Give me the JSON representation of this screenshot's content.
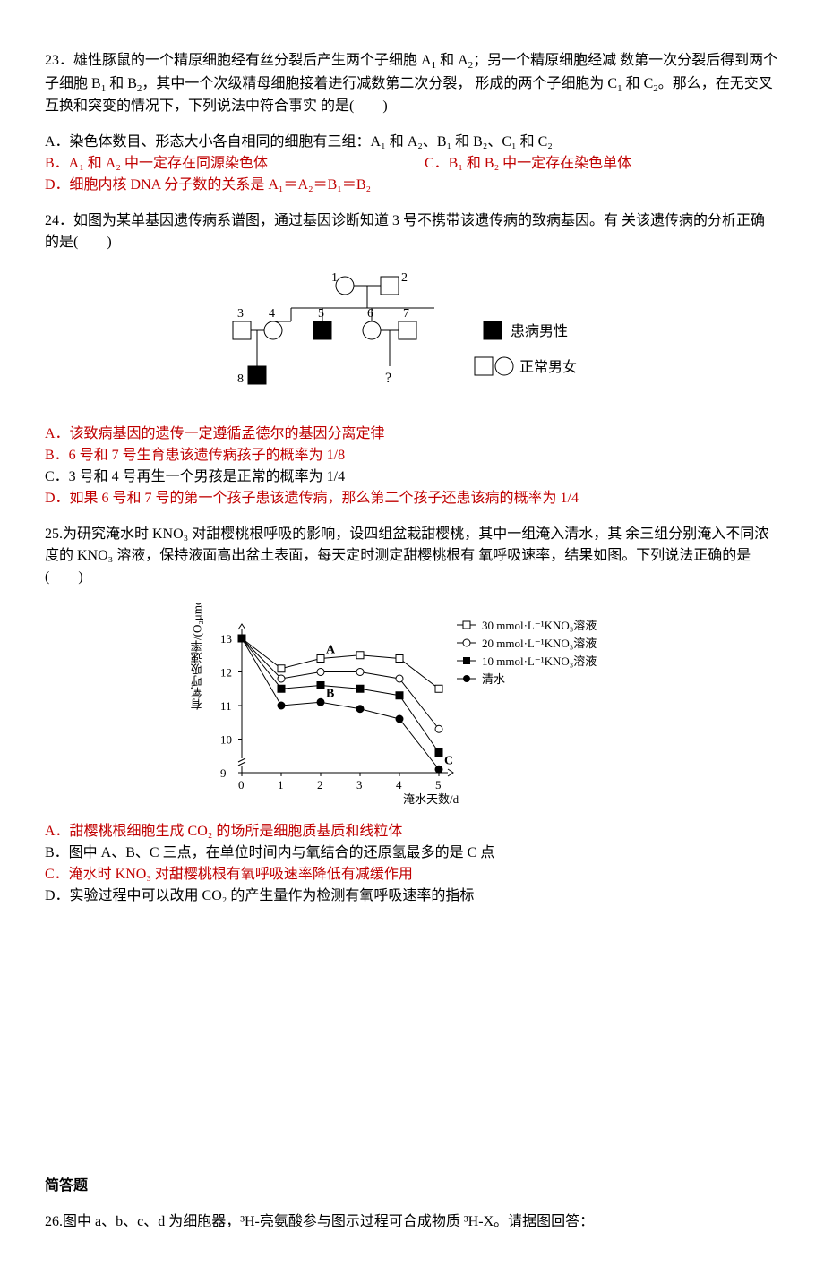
{
  "q23": {
    "stem_l1": "23．雄性豚鼠的一个精原细胞经有丝分裂后产生两个子细胞 A",
    "stem_l1b": " 和 A",
    "stem_l1c": "；另一个精原细胞经减",
    "stem_l2": "数第一次分裂后得到两个子细胞 B",
    "stem_l2b": " 和 B",
    "stem_l2c": "，其中一个次级精母细胞接着进行减数第二次分裂，",
    "stem_l3": "形成的两个子细胞为 C",
    "stem_l3b": " 和 C",
    "stem_l3c": "。那么，在无交叉互换和突变的情况下，下列说法中符合事实",
    "stem_l4": "的是(　　)",
    "optA": "A．染色体数目、形态大小各自相同的细胞有三组：A₁ 和 A₂、B₁ 和 B₂、C₁ 和 C₂",
    "optB": "B．A₁ 和 A₂ 中一定存在同源染色体",
    "optC": "C．B₁ 和 B₂ 中一定存在染色单体",
    "optD": "D．细胞内核 DNA 分子数的关系是 A₁＝A₂＝B₁＝B₂"
  },
  "q24": {
    "stem_l1": "24．如图为某单基因遗传病系谱图，通过基因诊断知道 3 号不携带该遗传病的致病基因。有",
    "stem_l2": "关该遗传病的分析正确的是(　　)",
    "optA": "A．该致病基因的遗传一定遵循孟德尔的基因分离定律",
    "optB": "B．6 号和 7 号生育患该遗传病孩子的概率为 1/8",
    "optC": "C．3 号和 4 号再生一个男孩是正常的概率为 1/4",
    "optD": "D．如果 6 号和 7 号的第一个孩子患该遗传病，那么第二个孩子还患该病的概率为 1/4",
    "pedigree": {
      "labels": [
        "1",
        "2",
        "3",
        "4",
        "5",
        "6",
        "7",
        "8",
        "?"
      ],
      "legend_affected": "患病男性",
      "legend_normal": "正常男女",
      "stroke": "#000000",
      "fill_affected": "#000000",
      "fill_normal": "#ffffff"
    }
  },
  "q25": {
    "stem_l1": "25.为研究淹水时 KNO₃ 对甜樱桃根呼吸的影响，设四组盆栽甜樱桃，其中一组淹入清水，其",
    "stem_l2": "余三组分别淹入不同浓度的 KNO₃ 溶液，保持液面高出盆土表面，每天定时测定甜樱桃根有",
    "stem_l3": "氧呼吸速率，结果如图。下列说法正确的是(　　)",
    "optA": "A．甜樱桃根细胞生成 CO₂ 的场所是细胞质基质和线粒体",
    "optB": "B．图中 A、B、C 三点，在单位时间内与氧结合的还原氢最多的是 C 点",
    "optC": "C．淹水时 KNO₃ 对甜樱桃根有氧呼吸速率降低有减缓作用",
    "optD": "D．实验过程中可以改用 CO₂ 的产生量作为检测有氧呼吸速率的指标",
    "chart": {
      "type": "line",
      "ylabel": "有氧呼吸速率/(O₂μmol·g⁻¹·h⁻¹)",
      "xlabel": "淹水天数/d",
      "xlim": [
        0,
        5
      ],
      "ylim": [
        9,
        13
      ],
      "xticks": [
        0,
        1,
        2,
        3,
        4,
        5
      ],
      "yticks": [
        9,
        10,
        11,
        12,
        13
      ],
      "y_break": true,
      "legend": [
        "30 mmol·L⁻¹KNO₃溶液",
        "20 mmol·L⁻¹KNO₃溶液",
        "10 mmol·L⁻¹KNO₃溶液",
        "清水"
      ],
      "markers": [
        "open-square",
        "open-circle",
        "filled-square",
        "filled-circle"
      ],
      "series_colors": [
        "#000000",
        "#000000",
        "#000000",
        "#000000"
      ],
      "series": {
        "s30": [
          [
            0,
            13
          ],
          [
            1,
            12.1
          ],
          [
            2,
            12.4
          ],
          [
            3,
            12.5
          ],
          [
            4,
            12.4
          ],
          [
            5,
            11.5
          ]
        ],
        "s20": [
          [
            0,
            13
          ],
          [
            1,
            11.8
          ],
          [
            2,
            12.0
          ],
          [
            3,
            12.0
          ],
          [
            4,
            11.8
          ],
          [
            5,
            10.3
          ]
        ],
        "s10": [
          [
            0,
            13
          ],
          [
            1,
            11.5
          ],
          [
            2,
            11.6
          ],
          [
            3,
            11.5
          ],
          [
            4,
            11.3
          ],
          [
            5,
            9.6
          ]
        ],
        "water": [
          [
            0,
            13
          ],
          [
            1,
            11.0
          ],
          [
            2,
            11.1
          ],
          [
            3,
            10.9
          ],
          [
            4,
            10.6
          ],
          [
            5,
            9.1
          ]
        ]
      },
      "point_labels": {
        "A": [
          2,
          12.4
        ],
        "B": [
          2,
          11.1
        ],
        "C": [
          5,
          9.1
        ]
      },
      "background": "#ffffff",
      "axis_color": "#000000"
    }
  },
  "short_answer_heading": "简答题",
  "q26": {
    "stem": "26.图中 a、b、c、d 为细胞器，³H-亮氨酸参与图示过程可合成物质 ³H-X。请据图回答："
  }
}
